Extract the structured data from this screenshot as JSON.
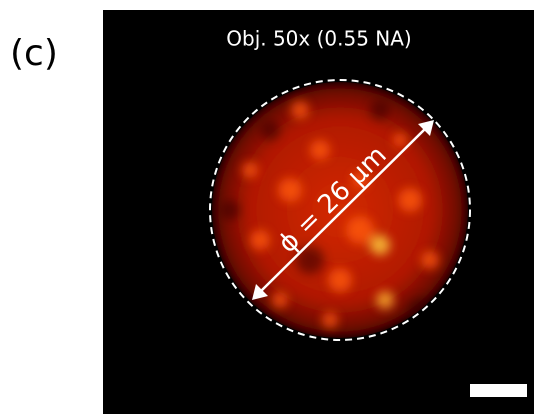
{
  "panel_label": "(c)",
  "image": {
    "title": "Obj. 50x (0.55 NA)",
    "annotation": "ϕ = 26 µm"
  }
}
